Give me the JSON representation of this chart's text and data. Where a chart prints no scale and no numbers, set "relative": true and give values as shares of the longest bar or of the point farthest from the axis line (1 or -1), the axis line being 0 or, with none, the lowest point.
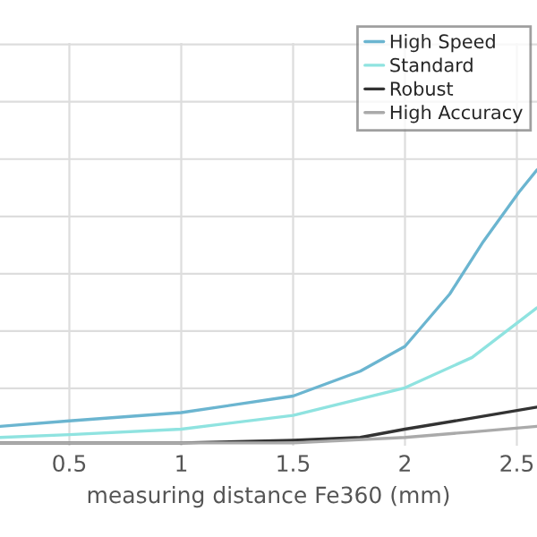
{
  "chart_data": {
    "type": "line",
    "relative": true,
    "xlabel": "measuring distance Fe360 (mm)",
    "xlim": [
      0.19,
      2.59
    ],
    "xticks": [
      0.5,
      1,
      1.5,
      2,
      2.5
    ],
    "tick_labels": "x",
    "grid": true,
    "legend": "top right",
    "marker": "none",
    "line_style": "solid",
    "series": [
      {
        "name": "High Speed",
        "color": "#6bb5d0",
        "x": [
          0.19,
          0.5,
          1.0,
          1.5,
          1.8,
          2.0,
          2.2,
          2.35,
          2.51,
          2.59
        ],
        "values": [
          0.07,
          0.09,
          0.12,
          0.18,
          0.27,
          0.36,
          0.55,
          0.74,
          0.92,
          1.0
        ]
      },
      {
        "name": "Standard",
        "color": "#8fe3e0",
        "x": [
          0.19,
          0.5,
          1.0,
          1.5,
          2.0,
          2.3,
          2.59
        ],
        "values": [
          0.03,
          0.04,
          0.06,
          0.11,
          0.21,
          0.32,
          0.5
        ]
      },
      {
        "name": "Robust",
        "color": "#333333",
        "x": [
          0.19,
          1.0,
          1.5,
          1.8,
          2.0,
          2.3,
          2.59
        ],
        "values": [
          0.01,
          0.01,
          0.02,
          0.03,
          0.06,
          0.1,
          0.14
        ]
      },
      {
        "name": "High Accuracy",
        "color": "#aaaaaa",
        "x": [
          0.19,
          1.5,
          2.0,
          2.3,
          2.59
        ],
        "values": [
          0.01,
          0.01,
          0.03,
          0.05,
          0.07
        ]
      }
    ]
  }
}
